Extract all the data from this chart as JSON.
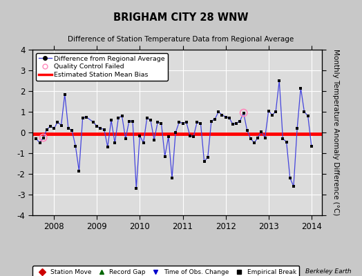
{
  "title": "BRIGHAM CITY 28 WNW",
  "subtitle": "Difference of Station Temperature Data from Regional Average",
  "ylabel": "Monthly Temperature Anomaly Difference (°C)",
  "credit": "Berkeley Earth",
  "xlim": [
    2007.5,
    2014.25
  ],
  "ylim": [
    -4,
    4
  ],
  "yticks": [
    -4,
    -3,
    -2,
    -1,
    0,
    1,
    2,
    3,
    4
  ],
  "xticks": [
    2008,
    2009,
    2010,
    2011,
    2012,
    2013,
    2014
  ],
  "bias_level": -0.07,
  "line_color": "#4444DD",
  "dot_color": "#000000",
  "bias_color": "#FF0000",
  "plot_bg_color": "#DCDCDC",
  "fig_bg_color": "#C8C8C8",
  "qc_fail_points": [
    [
      2007.75,
      -0.25
    ],
    [
      2012.42,
      0.95
    ]
  ],
  "time_series": {
    "x": [
      2007.583,
      2007.667,
      2007.75,
      2007.833,
      2007.917,
      2008.0,
      2008.083,
      2008.167,
      2008.25,
      2008.333,
      2008.417,
      2008.5,
      2008.583,
      2008.667,
      2008.75,
      2008.917,
      2009.0,
      2009.083,
      2009.167,
      2009.25,
      2009.333,
      2009.417,
      2009.5,
      2009.583,
      2009.667,
      2009.75,
      2009.833,
      2009.917,
      2010.0,
      2010.083,
      2010.167,
      2010.25,
      2010.333,
      2010.417,
      2010.5,
      2010.583,
      2010.667,
      2010.75,
      2010.833,
      2010.917,
      2011.0,
      2011.083,
      2011.167,
      2011.25,
      2011.333,
      2011.417,
      2011.5,
      2011.583,
      2011.667,
      2011.75,
      2011.833,
      2011.917,
      2012.0,
      2012.083,
      2012.167,
      2012.25,
      2012.333,
      2012.417,
      2012.5,
      2012.583,
      2012.667,
      2012.75,
      2012.833,
      2012.917,
      2013.0,
      2013.083,
      2013.167,
      2013.25,
      2013.333,
      2013.417,
      2013.5,
      2013.583,
      2013.667,
      2013.75,
      2013.833,
      2013.917,
      2014.0
    ],
    "y": [
      -0.3,
      -0.5,
      -0.25,
      0.15,
      0.3,
      0.2,
      0.5,
      0.35,
      1.85,
      0.2,
      0.1,
      -0.65,
      -1.85,
      0.7,
      0.75,
      0.5,
      0.3,
      0.2,
      0.15,
      -0.7,
      0.6,
      -0.5,
      0.7,
      0.8,
      -0.3,
      0.55,
      0.55,
      -2.7,
      -0.15,
      -0.5,
      0.7,
      0.6,
      -0.35,
      0.5,
      0.45,
      -1.15,
      -0.2,
      -2.2,
      0.0,
      0.5,
      0.45,
      0.5,
      -0.15,
      -0.2,
      0.5,
      0.45,
      -1.4,
      -1.2,
      0.55,
      0.65,
      1.0,
      0.85,
      0.75,
      0.7,
      0.4,
      0.45,
      0.55,
      0.95,
      0.1,
      -0.3,
      -0.5,
      -0.25,
      0.05,
      -0.25,
      1.05,
      0.85,
      1.0,
      2.5,
      -0.3,
      -0.45,
      -2.2,
      -2.6,
      0.2,
      2.15,
      1.0,
      0.8,
      -0.65
    ]
  }
}
